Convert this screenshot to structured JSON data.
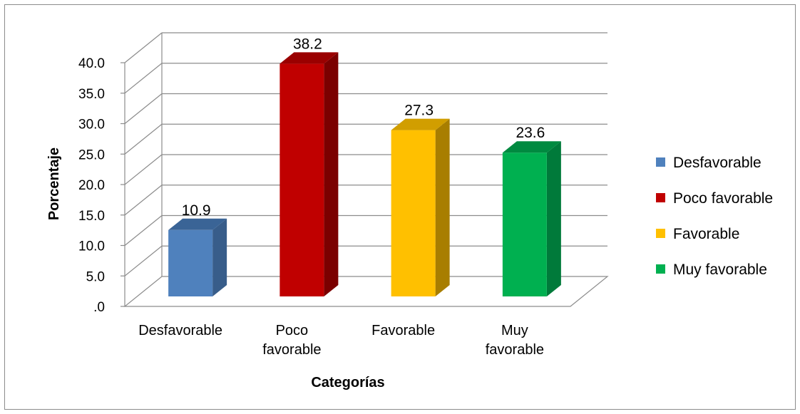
{
  "chart_data": {
    "type": "bar",
    "categories": [
      "Desfavorable",
      "Poco favorable",
      "Favorable",
      "Muy favorable"
    ],
    "category_labels": [
      [
        "Desfavorable"
      ],
      [
        "Poco",
        "favorable"
      ],
      [
        "Favorable"
      ],
      [
        "Muy",
        "favorable"
      ]
    ],
    "values": [
      10.9,
      38.2,
      27.3,
      23.6
    ],
    "value_labels": [
      "10.9",
      "38.2",
      "27.3",
      "23.6"
    ],
    "colors": [
      "#4F81BD",
      "#C00000",
      "#FFC000",
      "#00B050"
    ],
    "side_colors": [
      "#385D8A",
      "#7B0000",
      "#A87E00",
      "#007A3A"
    ],
    "top_colors": [
      "#3A6496",
      "#9A0000",
      "#D19E00",
      "#008A40"
    ],
    "ylabel": "Porcentaje",
    "xlabel": "Categorías",
    "ylim": [
      0,
      40
    ],
    "ytick_values": [
      0,
      5,
      10,
      15,
      20,
      25,
      30,
      35,
      40
    ],
    "ytick_labels": [
      ".0",
      "5.0",
      "10.0",
      "15.0",
      "20.0",
      "25.0",
      "30.0",
      "35.0",
      "40.0"
    ],
    "grid": true,
    "style": "3d-column",
    "legend": {
      "position": "right",
      "entries": [
        "Desfavorable",
        "Poco favorable",
        "Favorable",
        "Muy favorable"
      ]
    }
  }
}
